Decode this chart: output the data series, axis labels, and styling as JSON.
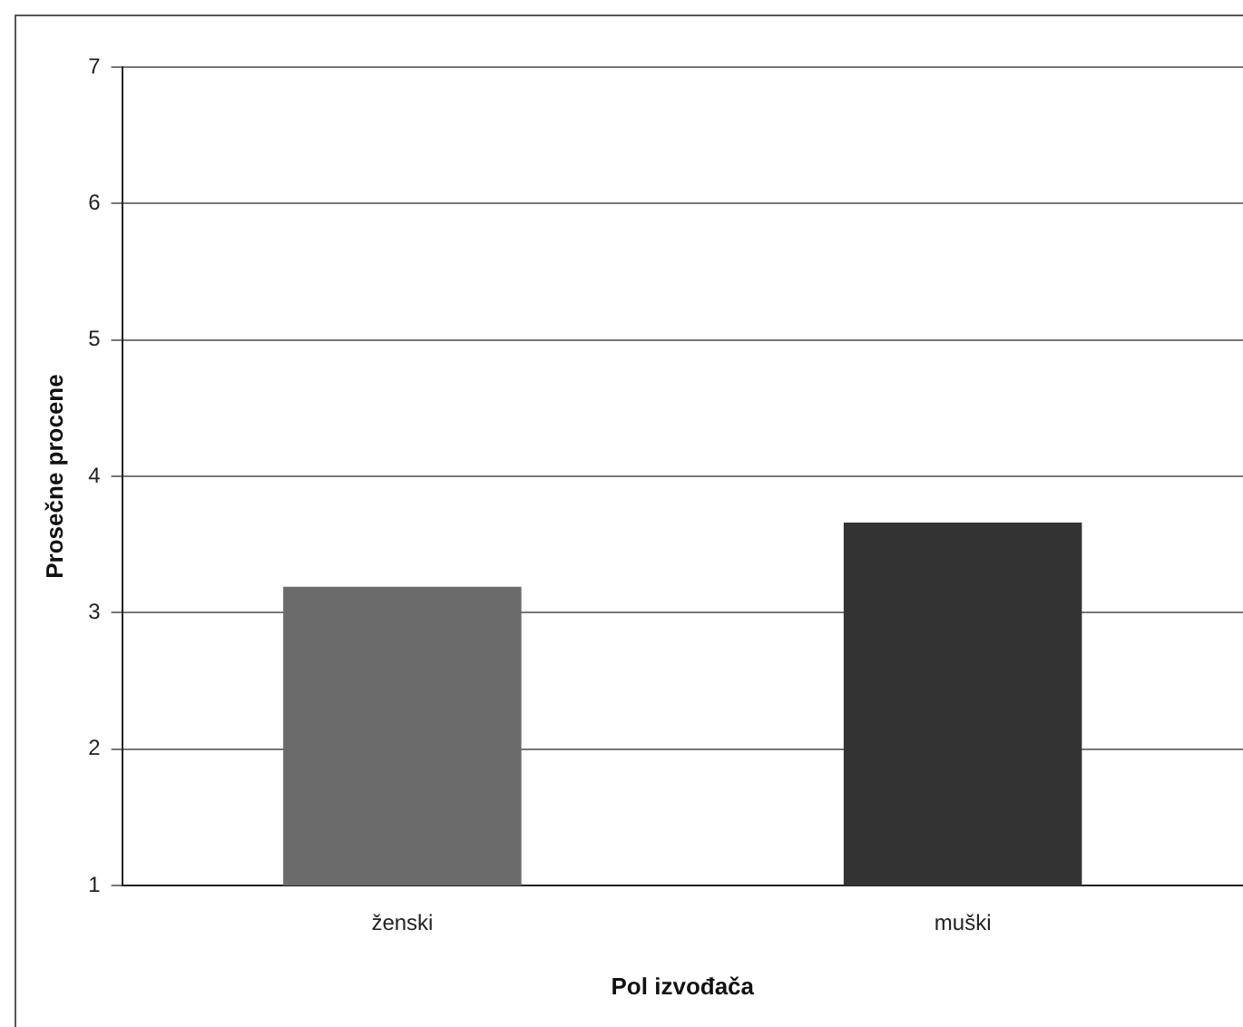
{
  "chart_data": {
    "type": "bar",
    "xlabel": "Pol izvođača",
    "ylabel": "Prosečne procene",
    "categories": [
      "ženski",
      "muški"
    ],
    "values": [
      3.19,
      3.66
    ],
    "colors": [
      "#6b6b6b",
      "#333333"
    ],
    "ylim": [
      1,
      7
    ],
    "yticks": [
      1,
      2,
      3,
      4,
      5,
      6,
      7
    ],
    "grid": "y",
    "legend": false
  }
}
